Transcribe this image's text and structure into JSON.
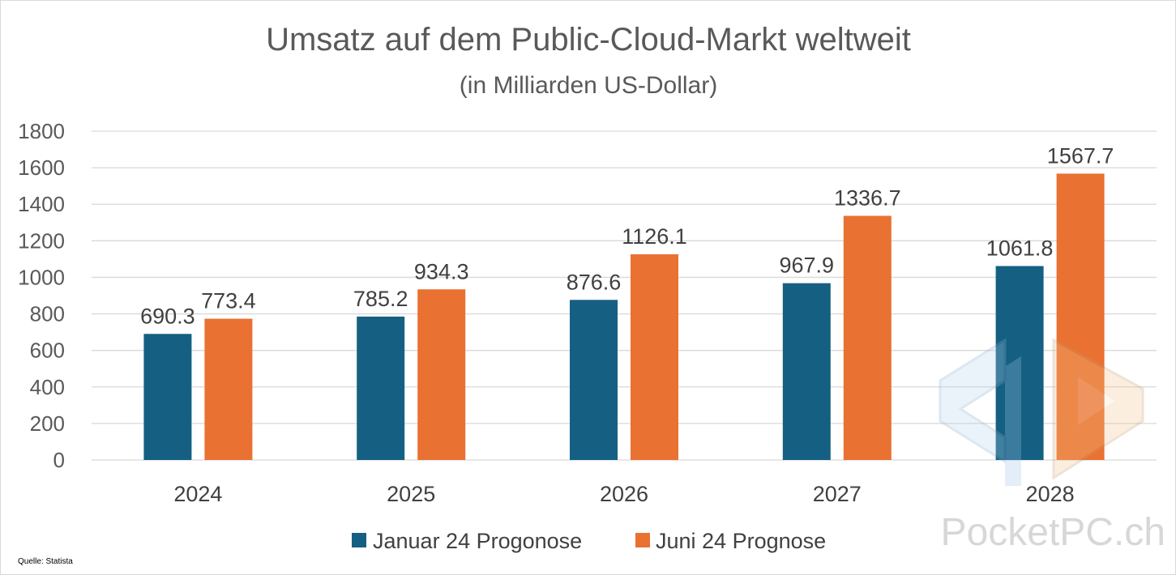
{
  "chart_data": {
    "type": "bar",
    "title": "Umsatz auf dem Public-Cloud-Markt weltweit",
    "subtitle": "(in Milliarden US-Dollar)",
    "categories": [
      "2024",
      "2025",
      "2026",
      "2027",
      "2028"
    ],
    "series": [
      {
        "name": "Januar 24 Progonose",
        "color": "#156082",
        "values": [
          690.3,
          785.2,
          876.6,
          967.9,
          1061.8
        ]
      },
      {
        "name": "Juni 24 Prognose",
        "color": "#E97132",
        "values": [
          773.4,
          934.3,
          1126.1,
          1336.7,
          1567.7
        ]
      }
    ],
    "ylim": [
      0,
      1800
    ],
    "yticks": [
      0,
      200,
      400,
      600,
      800,
      1000,
      1200,
      1400,
      1600,
      1800
    ],
    "grid": true,
    "legend": "bottom",
    "xlabel": "",
    "ylabel": ""
  },
  "source": "Quelle: Statista",
  "watermark": {
    "text": "PocketPC.ch",
    "icon": "pocketpc-logo-icon"
  }
}
